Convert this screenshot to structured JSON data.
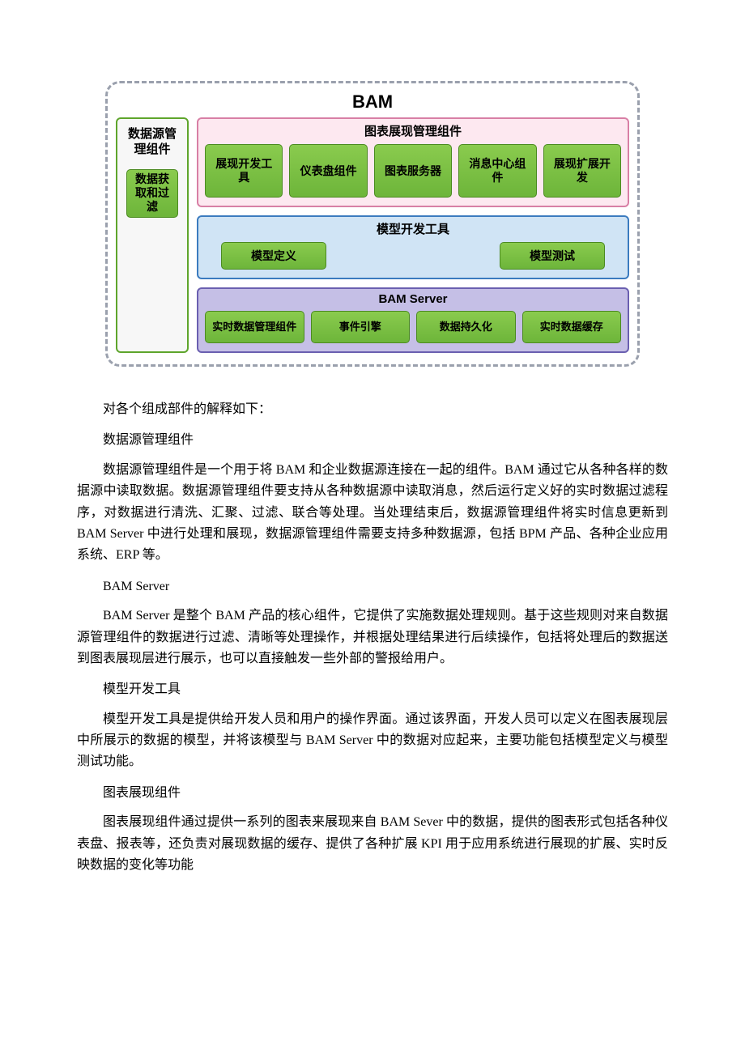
{
  "diagram": {
    "title": "BAM",
    "colors": {
      "dashed_border": "#9aa0ad",
      "green_fill_top": "#8acb4e",
      "green_fill_bottom": "#6db53a",
      "green_border": "#4b8a20",
      "pink_fill": "#fde8f0",
      "pink_border": "#d87fa5",
      "blue_fill": "#d0e4f5",
      "blue_border": "#3b7bbf",
      "purple_fill": "#c5bfe6",
      "purple_border": "#6a5fb0",
      "left_fill": "#f7f7f7",
      "left_border": "#5ea52c"
    },
    "left": {
      "title": "数据源管理组件",
      "sub": "数据获取和过滤"
    },
    "chart_section": {
      "title": "图表展现管理组件",
      "items": [
        "展现开发工具",
        "仪表盘组件",
        "图表服务器",
        "消息中心组件",
        "展现扩展开发"
      ]
    },
    "model_section": {
      "title": "模型开发工具",
      "items": [
        "模型定义",
        "模型测试"
      ]
    },
    "server_section": {
      "title": "BAM Server",
      "items": [
        "实时数据管理组件",
        "事件引擎",
        "数据持久化",
        "实时数据缓存"
      ]
    }
  },
  "text": {
    "p1": "对各个组成部件的解释如下：",
    "h1": "数据源管理组件",
    "p2": "数据源管理组件是一个用于将 BAM 和企业数据源连接在一起的组件。BAM 通过它从各种各样的数据源中读取数据。数据源管理组件要支持从各种数据源中读取消息，然后运行定义好的实时数据过滤程序，对数据进行清洗、汇聚、过滤、联合等处理。当处理结束后，数据源管理组件将实时信息更新到 BAM Server 中进行处理和展现，数据源管理组件需要支持多种数据源，包括 BPM 产品、各种企业应用系统、ERP 等。",
    "h2": "BAM Server",
    "p3": "BAM Server 是整个 BAM 产品的核心组件，它提供了实施数据处理规则。基于这些规则对来自数据源管理组件的数据进行过滤、清晰等处理操作，并根据处理结果进行后续操作，包括将处理后的数据送到图表展现层进行展示，也可以直接触发一些外部的警报给用户。",
    "h3": "模型开发工具",
    "p4": "模型开发工具是提供给开发人员和用户的操作界面。通过该界面，开发人员可以定义在图表展现层中所展示的数据的模型，并将该模型与 BAM Server 中的数据对应起来，主要功能包括模型定义与模型测试功能。",
    "h4": "图表展现组件",
    "p5": "图表展现组件通过提供一系列的图表来展现来自 BAM Sever 中的数据，提供的图表形式包括各种仪表盘、报表等，还负责对展现数据的缓存、提供了各种扩展 KPI 用于应用系统进行展现的扩展、实时反映数据的变化等功能"
  }
}
